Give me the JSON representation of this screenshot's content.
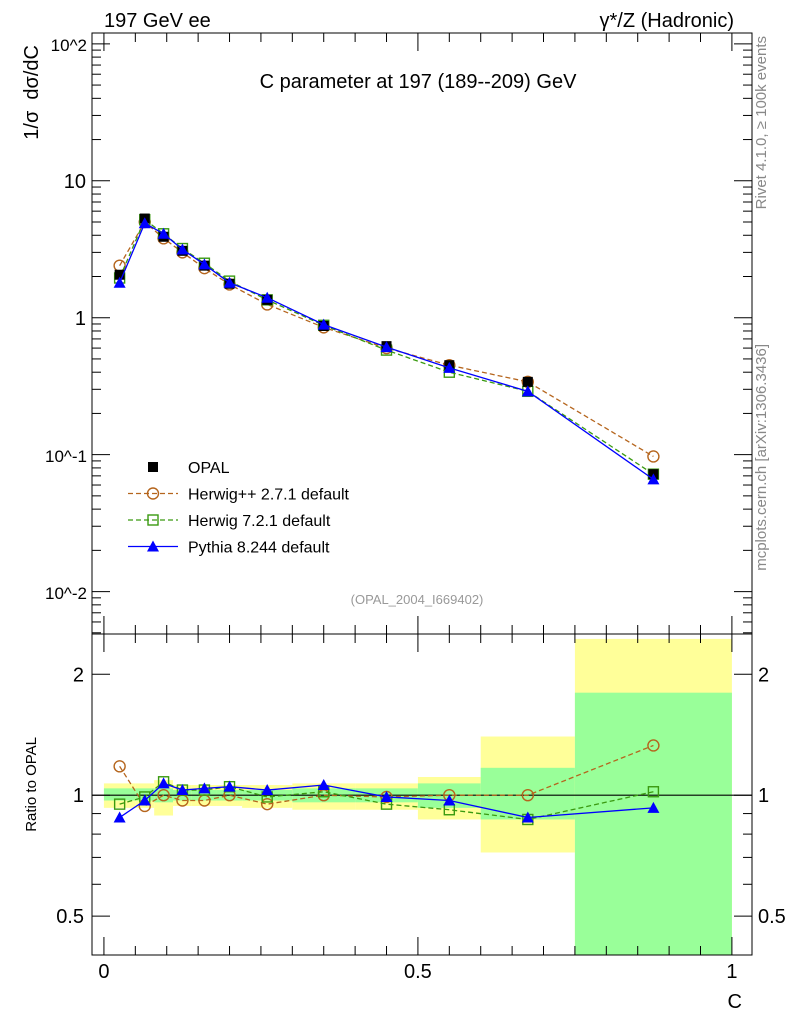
{
  "header": {
    "left": "197 GeV ee",
    "right": "γ*/Z (Hadronic)"
  },
  "side": {
    "rivet": "Rivet 4.1.0, ≥ 100k events",
    "mcplots": "mcplots.cern.ch [arXiv:1306.3436]"
  },
  "chart_data": [
    {
      "type": "line",
      "title": "C parameter at 197 (189--209) GeV",
      "ylabel": "1/σ  dσ/dC",
      "xlabel": "C",
      "analysis": "(OPAL_2004_I669402)",
      "yscale": "log",
      "ylim": [
        0.0049,
        120
      ],
      "xlim": [
        -0.019,
        1.032
      ],
      "ytick_labels": [
        "10^-2",
        "10^-1",
        "1",
        "10",
        "10^2"
      ],
      "legend_position": "bottom-left",
      "x": [
        0.025,
        0.065,
        0.095,
        0.125,
        0.16,
        0.2,
        0.26,
        0.35,
        0.45,
        0.55,
        0.675,
        0.875
      ],
      "series": [
        {
          "name": "OPAL",
          "color": "#000000",
          "marker": "square-filled",
          "values": [
            2.06,
            5.3,
            3.9,
            3.08,
            2.4,
            1.77,
            1.35,
            0.87,
            0.62,
            0.45,
            0.34,
            0.072
          ]
        },
        {
          "name": "Herwig++ 2.7.1 default",
          "color": "#b5651d",
          "marker": "circle-open",
          "dash": true,
          "values": [
            2.4,
            5.0,
            3.8,
            3.0,
            2.3,
            1.75,
            1.25,
            0.85,
            0.6,
            0.45,
            0.34,
            0.097
          ]
        },
        {
          "name": "Herwig 7.2.1 default",
          "color": "#3a9a10",
          "marker": "square-open",
          "dash": true,
          "values": [
            1.95,
            5.2,
            4.1,
            3.2,
            2.5,
            1.85,
            1.35,
            0.88,
            0.58,
            0.4,
            0.29,
            0.072
          ]
        },
        {
          "name": "Pythia 8.244 default",
          "color": "#0000ff",
          "marker": "triangle-filled",
          "dash": false,
          "values": [
            1.8,
            4.9,
            4.1,
            3.15,
            2.45,
            1.8,
            1.4,
            0.89,
            0.61,
            0.43,
            0.29,
            0.066
          ]
        }
      ]
    },
    {
      "type": "line",
      "ylabel": "Ratio to OPAL",
      "xlabel": "C",
      "yscale": "log",
      "ylim": [
        0.4,
        2.52
      ],
      "ytick_labels": [
        "0.5",
        "1",
        "2"
      ],
      "xtick_labels": [
        "0",
        "0.5",
        "1"
      ],
      "bin_edges": [
        0,
        0.05,
        0.08,
        0.11,
        0.14,
        0.18,
        0.22,
        0.3,
        0.4,
        0.5,
        0.6,
        0.75,
        1.0
      ],
      "band_total": [
        [
          0.93,
          1.07
        ],
        [
          0.93,
          1.07
        ],
        [
          0.89,
          1.09
        ],
        [
          0.94,
          1.06
        ],
        [
          0.94,
          1.06
        ],
        [
          0.94,
          1.06
        ],
        [
          0.93,
          1.06
        ],
        [
          0.92,
          1.07
        ],
        [
          0.92,
          1.07
        ],
        [
          0.87,
          1.11
        ],
        [
          0.72,
          1.4
        ],
        [
          0.4,
          2.45
        ]
      ],
      "band_stat": [
        [
          0.97,
          1.04
        ],
        [
          0.97,
          1.04
        ],
        [
          0.96,
          1.04
        ],
        [
          0.97,
          1.03
        ],
        [
          0.97,
          1.03
        ],
        [
          0.97,
          1.03
        ],
        [
          0.97,
          1.03
        ],
        [
          0.96,
          1.04
        ],
        [
          0.96,
          1.04
        ],
        [
          0.93,
          1.07
        ],
        [
          0.87,
          1.17
        ],
        [
          0.4,
          1.8
        ]
      ],
      "band_colors": {
        "total": "#ffff99",
        "stat": "#99ff99"
      },
      "series": [
        {
          "name": "Herwig++ 2.7.1 default",
          "color": "#b5651d",
          "marker": "circle-open",
          "dash": true,
          "values": [
            1.18,
            0.94,
            1.0,
            0.97,
            0.97,
            1.0,
            0.95,
            1.0,
            0.99,
            1.0,
            1.0,
            1.33
          ]
        },
        {
          "name": "Herwig 7.2.1 default",
          "color": "#3a9a10",
          "marker": "square-open",
          "dash": true,
          "values": [
            0.95,
            0.99,
            1.08,
            1.03,
            1.03,
            1.05,
            0.99,
            1.02,
            0.95,
            0.92,
            0.87,
            1.02
          ]
        },
        {
          "name": "Pythia 8.244 default",
          "color": "#0000ff",
          "marker": "triangle-filled",
          "dash": false,
          "values": [
            0.88,
            0.97,
            1.07,
            1.03,
            1.04,
            1.05,
            1.03,
            1.06,
            0.99,
            0.97,
            0.88,
            0.93
          ]
        }
      ]
    }
  ]
}
